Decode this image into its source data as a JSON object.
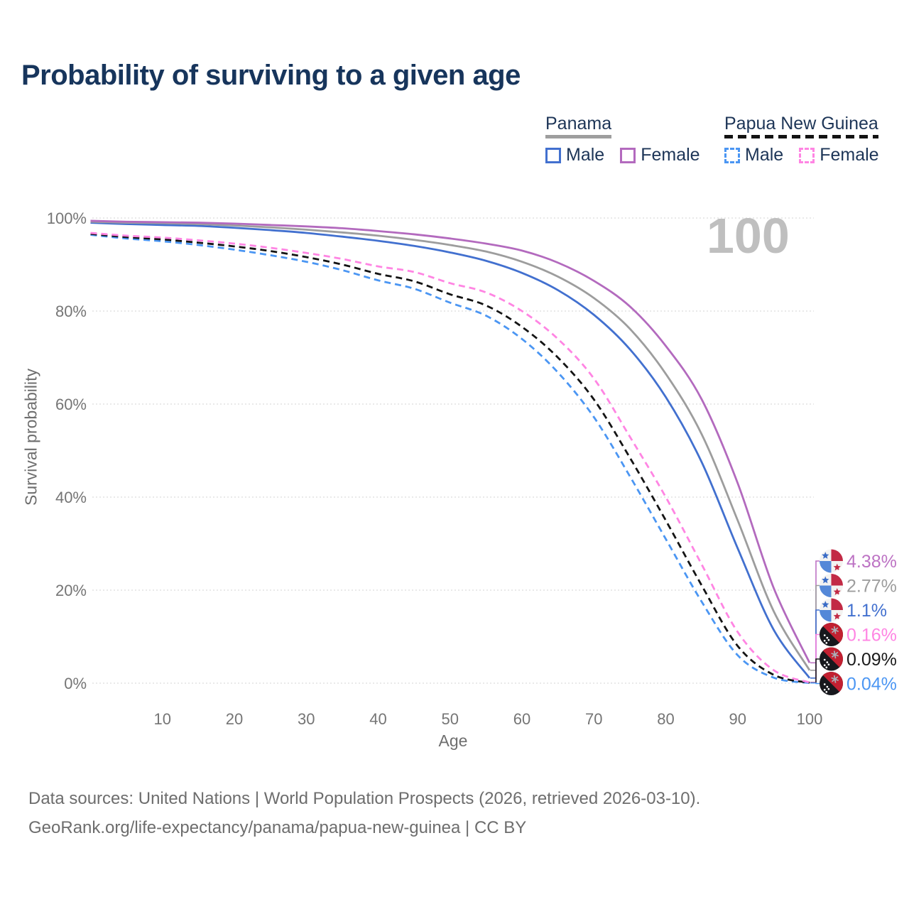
{
  "title": "Probability of surviving to a given age",
  "watermark": "100",
  "legend": {
    "groups": [
      {
        "label": "Panama",
        "style": "solid",
        "items": [
          {
            "label": "Male",
            "color": "#4270cf"
          },
          {
            "label": "Female",
            "color": "#b36abe"
          }
        ]
      },
      {
        "label": "Papua New Guinea",
        "style": "dashed",
        "items": [
          {
            "label": "Male",
            "color": "#4b96f3"
          },
          {
            "label": "Female",
            "color": "#ff85e3"
          }
        ]
      }
    ]
  },
  "chart_data": {
    "type": "line",
    "title": "Probability of surviving to a given age",
    "xlabel": "Age",
    "ylabel": "Survival probability",
    "xlim": [
      0,
      100
    ],
    "ylim": [
      0,
      100
    ],
    "grid": true,
    "x_ticks": [
      10,
      20,
      30,
      40,
      50,
      60,
      70,
      80,
      90,
      100
    ],
    "y_ticks": [
      0,
      20,
      40,
      60,
      80,
      100
    ],
    "y_tick_labels": [
      "0%",
      "20%",
      "40%",
      "60%",
      "80%",
      "100%"
    ],
    "x": [
      0,
      5,
      10,
      15,
      20,
      25,
      30,
      35,
      40,
      45,
      50,
      55,
      60,
      65,
      70,
      75,
      80,
      85,
      90,
      95,
      100
    ],
    "series": [
      {
        "name": "Papua New Guinea Male",
        "color": "#4b96f3",
        "dash": "dashed",
        "values": [
          96.4,
          95.6,
          95.0,
          94.2,
          93.2,
          92.0,
          90.6,
          88.8,
          86.6,
          84.8,
          81.8,
          79.0,
          74.0,
          66.8,
          57.2,
          44.5,
          31.0,
          17.5,
          6.0,
          1.2,
          0.04
        ]
      },
      {
        "name": "Papua New Guinea",
        "color": "#141414",
        "dash": "dashed",
        "values": [
          96.6,
          95.9,
          95.4,
          94.7,
          93.9,
          92.9,
          91.6,
          90.0,
          88.0,
          86.4,
          83.6,
          81.2,
          76.6,
          70.0,
          61.0,
          48.5,
          35.0,
          21.0,
          8.0,
          1.8,
          0.09
        ]
      },
      {
        "name": "Papua New Guinea Female",
        "color": "#ff85e3",
        "dash": "dashed",
        "values": [
          96.8,
          96.2,
          95.8,
          95.2,
          94.5,
          93.6,
          92.5,
          91.2,
          89.6,
          88.4,
          86.0,
          84.0,
          80.0,
          74.0,
          65.5,
          53.0,
          40.0,
          25.5,
          11.0,
          2.8,
          0.16
        ]
      },
      {
        "name": "Panama Male",
        "color": "#4270cf",
        "dash": "solid",
        "values": [
          99.0,
          98.7,
          98.5,
          98.3,
          97.9,
          97.4,
          96.8,
          96.0,
          95.1,
          94.0,
          92.6,
          90.8,
          88.2,
          84.5,
          79.2,
          71.8,
          61.5,
          47.5,
          29.0,
          11.5,
          1.1
        ]
      },
      {
        "name": "Panama",
        "color": "#9d9d9d",
        "dash": "solid",
        "values": [
          99.2,
          99.0,
          98.9,
          98.7,
          98.4,
          98.0,
          97.5,
          96.9,
          96.2,
          95.3,
          94.2,
          92.8,
          90.6,
          87.4,
          82.8,
          76.2,
          66.5,
          53.5,
          35.0,
          15.5,
          2.77
        ]
      },
      {
        "name": "Panama Female",
        "color": "#b36abe",
        "dash": "solid",
        "values": [
          99.4,
          99.2,
          99.1,
          99.0,
          98.8,
          98.5,
          98.2,
          97.8,
          97.2,
          96.5,
          95.6,
          94.5,
          93.0,
          90.4,
          86.5,
          81.0,
          72.5,
          61.0,
          43.0,
          20.5,
          4.38
        ]
      }
    ],
    "end_labels": [
      {
        "text": "4.38%",
        "value": 4.38,
        "color": "#bd73c4",
        "flag": "panama",
        "series": "Panama Female"
      },
      {
        "text": "2.77%",
        "value": 2.77,
        "color": "#9d9d9d",
        "flag": "panama",
        "series": "Panama"
      },
      {
        "text": "1.1%",
        "value": 1.1,
        "color": "#4270cf",
        "flag": "panama",
        "series": "Panama Male"
      },
      {
        "text": "0.16%",
        "value": 0.16,
        "color": "#ff85e3",
        "flag": "png",
        "series": "Papua New Guinea Female"
      },
      {
        "text": "0.09%",
        "value": 0.09,
        "color": "#1a1a1a",
        "flag": "png",
        "series": "Papua New Guinea"
      },
      {
        "text": "0.04%",
        "value": 0.04,
        "color": "#4b96f3",
        "flag": "png",
        "series": "Papua New Guinea Male"
      }
    ]
  },
  "footer": {
    "line1": "Data sources: United Nations | World Population Prospects (2026, retrieved 2026-03-10).",
    "line2": "GeoRank.org/life-expectancy/panama/papua-new-guinea | CC BY"
  }
}
